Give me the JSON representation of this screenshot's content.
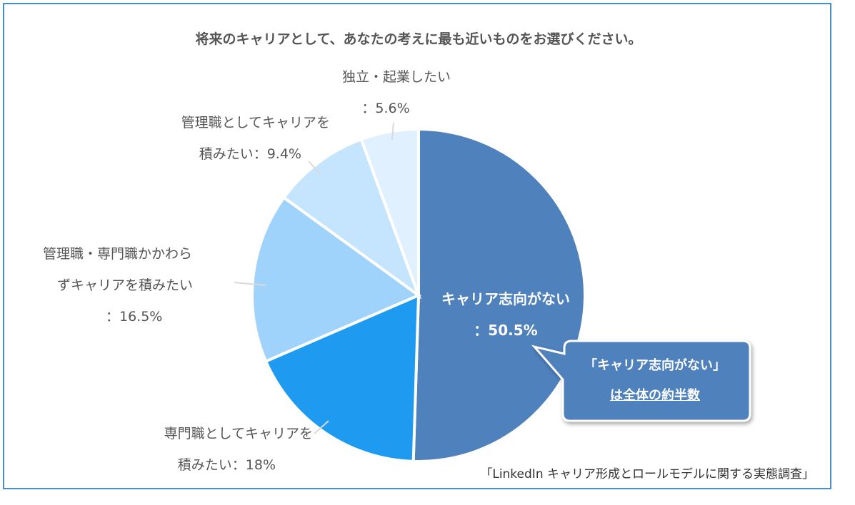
{
  "chart_data": {
    "type": "pie",
    "title": "将来のキャリアとして、あなたの考えに最も近いものをお選びください。",
    "slices": [
      {
        "label_lines": [
          "キャリア志向がない",
          "：50.5%"
        ],
        "value": 50.5,
        "color": "#4f81bd"
      },
      {
        "label_lines": [
          "専門職としてキャリアを",
          "積みたい：18%"
        ],
        "value": 18,
        "color": "#1e9bf0"
      },
      {
        "label_lines": [
          "管理職・専門職かかわら",
          "ずキャリアを積みたい",
          "：16.5%"
        ],
        "value": 16.5,
        "color": "#9fd3fb"
      },
      {
        "label_lines": [
          "管理職としてキャリアを",
          "積みたい：9.4%"
        ],
        "value": 9.4,
        "color": "#c5e4fd"
      },
      {
        "label_lines": [
          "独立・起業したい",
          "：5.6%"
        ],
        "value": 5.6,
        "color": "#e0f0fe"
      }
    ],
    "legend": "none"
  },
  "callout": {
    "lines": [
      "「キャリア志向がない」",
      "は全体の約半数"
    ],
    "fill": "#4f81bd",
    "border": "#ffffff"
  },
  "source": "「LinkedIn キャリア形成とロールモデルに関する実態調査」",
  "colors": {
    "frame": "#4a8fc4",
    "label_text": "#555555",
    "leader": "#d9d9d9"
  }
}
